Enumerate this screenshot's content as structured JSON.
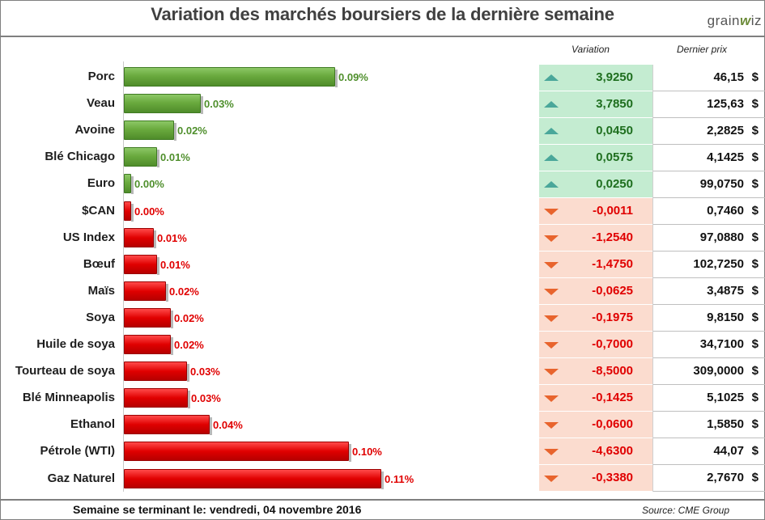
{
  "header": {
    "title": "Variation des marchés boursiers de la dernière semaine",
    "logo_text": "grainwiz"
  },
  "table_headers": {
    "variation": "Variation",
    "last_price": "Dernier prix"
  },
  "currency_symbol": "$",
  "colors": {
    "positive": "#6aaa3e",
    "negative": "#e00000",
    "up_arrow": "#4aa79a",
    "down_arrow": "#e8642d"
  },
  "chart_data": {
    "type": "bar",
    "orientation": "horizontal",
    "categories": [
      "Porc",
      "Veau",
      "Avoine",
      "Blé Chicago",
      "Euro",
      "$CAN",
      "US Index",
      "Bœuf",
      "Maïs",
      "Soya",
      "Huile de soya",
      "Tourteau de soya",
      "Blé Minneapolis",
      "Ethanol",
      "Pétrole (WTI)",
      "Gaz Naturel"
    ],
    "values": [
      0.09,
      0.03,
      0.02,
      0.01,
      0.0,
      0.0,
      0.01,
      0.01,
      0.02,
      0.02,
      0.02,
      0.03,
      0.03,
      0.04,
      0.1,
      0.11
    ],
    "value_labels": [
      "0.09%",
      "0.03%",
      "0.02%",
      "0.01%",
      "0.00%",
      "0.00%",
      "0.01%",
      "0.01%",
      "0.02%",
      "0.02%",
      "0.02%",
      "0.03%",
      "0.03%",
      "0.04%",
      "0.10%",
      "0.11%"
    ],
    "direction": [
      "up",
      "up",
      "up",
      "up",
      "up",
      "down",
      "down",
      "down",
      "down",
      "down",
      "down",
      "down",
      "down",
      "down",
      "down",
      "down"
    ],
    "bar_magnitudes": [
      0.0895,
      0.0326,
      0.0213,
      0.0141,
      0.0025,
      0.0015,
      0.0128,
      0.0142,
      0.0178,
      0.0197,
      0.0198,
      0.0268,
      0.0272,
      0.0364,
      0.0952,
      0.1089
    ],
    "variation": [
      "3,9250",
      "3,7850",
      "0,0450",
      "0,0575",
      "0,0250",
      "-0,0011",
      "-1,2540",
      "-1,4750",
      "-0,0625",
      "-0,1975",
      "-0,7000",
      "-8,5000",
      "-0,1425",
      "-0,0600",
      "-4,6300",
      "-0,3380"
    ],
    "last_price": [
      "46,15",
      "125,63",
      "2,2825",
      "4,1425",
      "99,0750",
      "0,7460",
      "97,0880",
      "102,7250",
      "3,4875",
      "9,8150",
      "34,7100",
      "309,0000",
      "5,1025",
      "1,5850",
      "44,07",
      "2,7670"
    ]
  },
  "footer": {
    "week_label": "Semaine se terminant le:",
    "week_date": "vendredi, 04 novembre 2016",
    "source": "Source: CME Group"
  }
}
